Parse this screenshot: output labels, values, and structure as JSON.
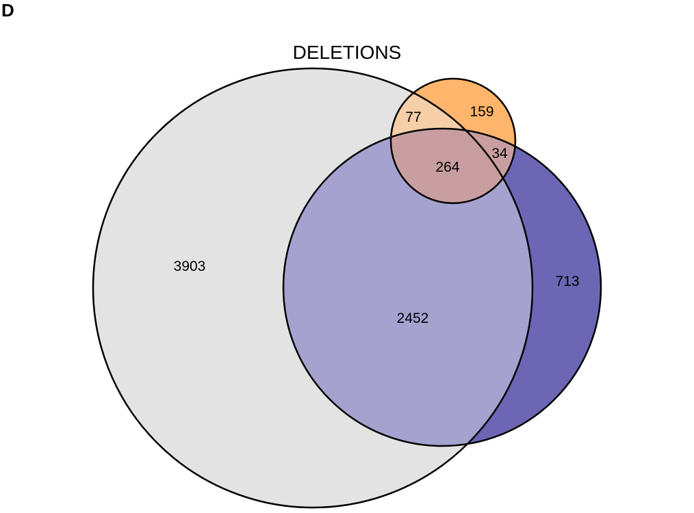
{
  "panel_label": "D",
  "title": "DELETIONS",
  "colors": {
    "grey_set": "#e3e3e3",
    "blue_set": "#6c66b5",
    "blue_overlap_grey": "#a5a2cf",
    "orange_set": "#ffb56b",
    "orange_overlap_grey": "#f6cfa8",
    "orange_overlap_blue": "#c99ea0",
    "outline": "#000000"
  },
  "regions": {
    "grey_only": "3903",
    "grey_blue": "2452",
    "blue_only": "713",
    "orange_only": "159",
    "grey_orange": "77",
    "all_three": "264",
    "blue_orange": "34"
  }
}
